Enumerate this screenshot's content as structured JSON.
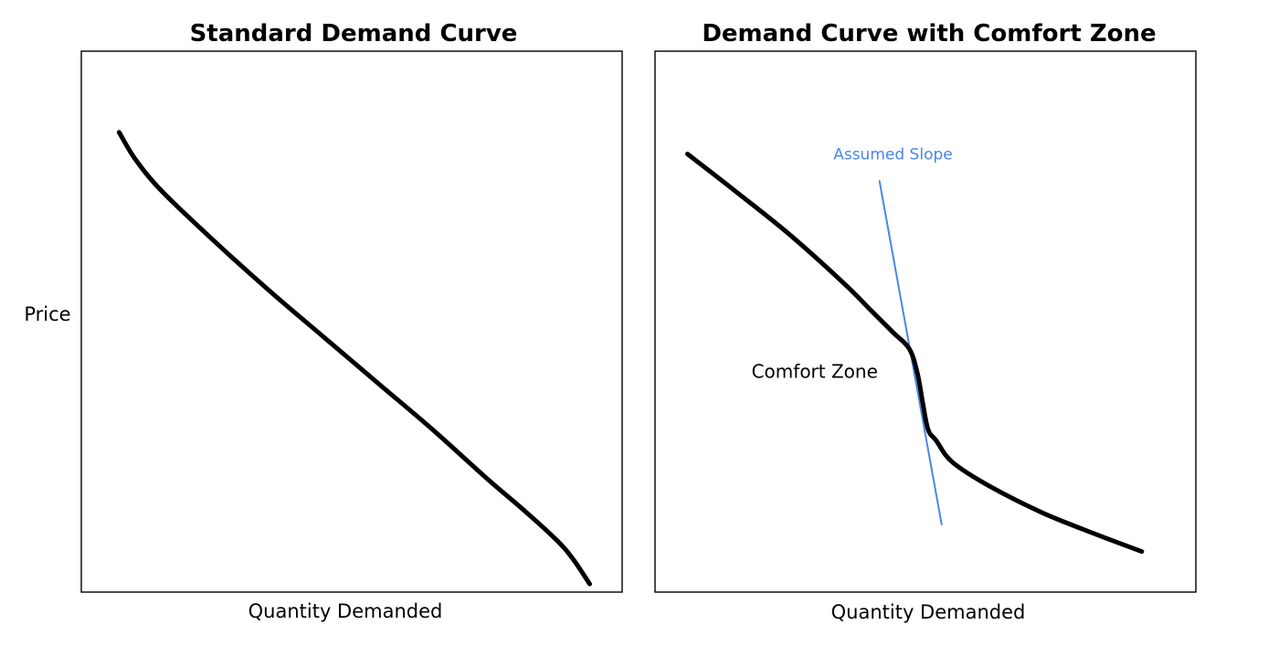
{
  "chart_data": [
    {
      "type": "line",
      "title": "Standard Demand Curve",
      "xlabel": "Quantity Demanded",
      "ylabel": "Price",
      "xlim": [
        0,
        100
      ],
      "ylim": [
        0,
        100
      ],
      "grid": false,
      "series": [
        {
          "x": [
            7,
            10,
            15,
            25,
            35,
            45,
            55,
            65,
            75,
            82,
            88,
            91,
            94
          ],
          "y": [
            85,
            80,
            74,
            64.5,
            55.5,
            47,
            38.5,
            30,
            21,
            15,
            9.5,
            6,
            1.5
          ]
        }
      ]
    },
    {
      "type": "line",
      "title": "Demand Curve with Comfort Zone",
      "xlabel": "Quantity Demanded",
      "ylabel": "",
      "xlim": [
        0,
        100
      ],
      "ylim": [
        0,
        100
      ],
      "grid": false,
      "series": [
        {
          "x": [
            6,
            15,
            25,
            35,
            40,
            44,
            47,
            48.5,
            49.5,
            50.5,
            52,
            55,
            62,
            72,
            82,
            90
          ],
          "y": [
            81,
            74,
            66,
            57,
            52,
            48,
            45,
            40.5,
            35,
            30,
            28,
            24,
            19.5,
            14.5,
            10.5,
            7.5
          ]
        },
        {
          "x": [
            41.5,
            53
          ],
          "y": [
            76,
            12.5
          ]
        }
      ],
      "annotations": [
        {
          "text": "Assumed Slope",
          "x": 44,
          "y": 80,
          "color": "#4a86e8"
        },
        {
          "text": "Comfort Zone",
          "x": 30,
          "y": 41,
          "color": "#000000"
        }
      ]
    }
  ]
}
